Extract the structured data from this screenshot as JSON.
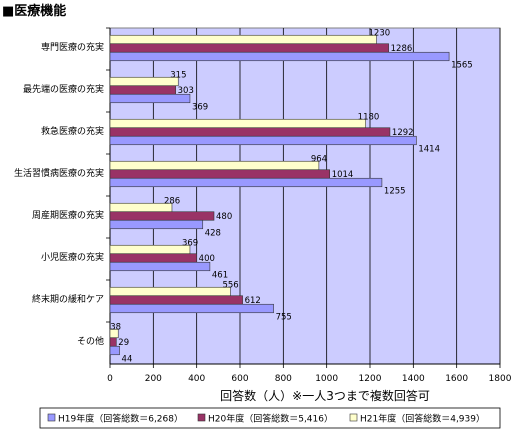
{
  "title": "■医療機能",
  "chart_data": {
    "type": "bar",
    "orientation": "horizontal",
    "categories": [
      "専門医療の充実",
      "最先端の医療の充実",
      "救急医療の充実",
      "生活習慣病医療の充実",
      "周産期医療の充実",
      "小児医療の充実",
      "終末期の緩和ケア",
      "その他"
    ],
    "series": [
      {
        "name": "H21年度（回答総数＝4,939）",
        "color": "#ffffcc",
        "values": [
          1230,
          315,
          1180,
          964,
          286,
          369,
          556,
          38
        ]
      },
      {
        "name": "H20年度（回答総数＝5,416）",
        "color": "#993366",
        "values": [
          1286,
          303,
          1292,
          1014,
          480,
          400,
          612,
          29
        ]
      },
      {
        "name": "H19年度（回答総数＝6,268）",
        "color": "#9999ff",
        "values": [
          1565,
          369,
          1414,
          1255,
          428,
          461,
          755,
          44
        ]
      }
    ],
    "legend_order": [
      "H19年度（回答総数＝6,268）",
      "H20年度（回答総数＝5,416）",
      "H21年度（回答総数＝4,939）"
    ],
    "value_labels": [
      [
        "1230",
        "1286",
        "1565"
      ],
      [
        "315",
        "303",
        "369"
      ],
      [
        "1180",
        "1292",
        "1414"
      ],
      [
        "964",
        "1014",
        "1255"
      ],
      [
        "286",
        "480",
        "428"
      ],
      [
        "369",
        "400",
        "461"
      ],
      [
        "556",
        "612",
        "755"
      ],
      [
        "38",
        "29",
        "44"
      ]
    ],
    "xlabel": "回答数（人）※一人3つまで複数回答可",
    "xlim": [
      0,
      1800
    ],
    "xticks": [
      0,
      200,
      400,
      600,
      800,
      1000,
      1200,
      1400,
      1600,
      1800
    ],
    "grid": true,
    "plot_background": "#ccccff",
    "legend_position": "bottom"
  }
}
